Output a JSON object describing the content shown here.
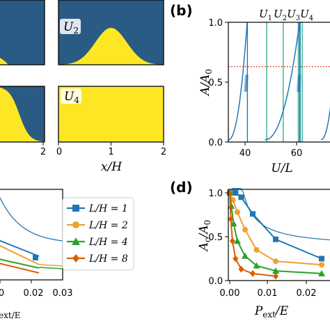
{
  "colors": {
    "navy": "#2a5b84",
    "yellow": "#fde725",
    "blue": "#1f77b4",
    "teal_light": "#3cb08a",
    "orange": "#f0a030",
    "green": "#2ca02c",
    "dark_orange": "#d95f02",
    "red_dotted": "#e41a1c",
    "sq_blue": "#1f77b4"
  },
  "panels": {
    "a": {
      "insets": [
        {
          "label": "U",
          "sub": "2"
        },
        {
          "label": "U",
          "sub": "4"
        }
      ],
      "x_ticks": [
        "0",
        "1",
        "2"
      ],
      "x_tick_left": "2",
      "xlabel": "x/H"
    },
    "b": {
      "letter": "(b)",
      "top_labels": [
        "U",
        "1",
        "U",
        "2",
        "U",
        "3",
        "U",
        "4"
      ],
      "ylabel": "A/A",
      "ylabel_sub": "0",
      "xlabel": "U/L",
      "y_ticks": [
        "0.0",
        "0.5",
        "1.0"
      ],
      "x_ticks": [
        "40",
        "60"
      ]
    },
    "c": {
      "x_ticks": [
        "0.01",
        "0.02",
        "0.03"
      ],
      "x_tick_left": "0",
      "xlabel_suffix": "ext/E",
      "legend": [
        {
          "text": "L/H = 1",
          "marker": "square"
        },
        {
          "text": "L/H = 2",
          "marker": "circle"
        },
        {
          "text": "L/H = 4",
          "marker": "triangle"
        },
        {
          "text": "L/H = 8",
          "marker": "diamond"
        }
      ]
    },
    "d": {
      "letter": "(d)",
      "ylabel": "A",
      "ylabel_sub1": "c",
      "ylabel_mid": "/A",
      "ylabel_sub2": "0",
      "xlabel": "P",
      "xlabel_sub": "ext",
      "xlabel_suffix": "/E",
      "y_ticks": [
        "0.0",
        "0.5",
        "1.0"
      ],
      "x_ticks": [
        "0.00",
        "0.01",
        "0.02"
      ]
    }
  },
  "chart_data": [
    {
      "type": "line",
      "panel": "b",
      "xlabel": "U/L",
      "ylabel": "A/A0",
      "xlim": [
        35,
        75
      ],
      "ylim": [
        0,
        1
      ],
      "vertical_lines": [
        {
          "name": "U1",
          "x": 49.7
        },
        {
          "name": "U2",
          "x": 56.0
        },
        {
          "name": "U3",
          "x": 61.8
        },
        {
          "name": "U4",
          "x": 63.3
        }
      ],
      "hline": {
        "y": 0.63,
        "style": "dotted"
      }
    },
    {
      "type": "line",
      "panel": "d",
      "xlabel": "Pext/E",
      "ylabel": "Ac/A0",
      "xlim": [
        0,
        0.03
      ],
      "ylim": [
        0,
        1.05
      ],
      "series": [
        {
          "name": "L/H = 1",
          "marker": "square",
          "x": [
            0.0,
            0.0015,
            0.003,
            0.006,
            0.012,
            0.024
          ],
          "y": [
            1.0,
            1.0,
            0.95,
            0.76,
            0.47,
            0.25
          ]
        },
        {
          "name": "L/H = 2",
          "marker": "circle",
          "x": [
            0.0,
            0.0008,
            0.002,
            0.004,
            0.007,
            0.012,
            0.024
          ],
          "y": [
            1.0,
            0.92,
            0.78,
            0.58,
            0.35,
            0.22,
            0.18
          ]
        },
        {
          "name": "L/H = 4",
          "marker": "triangle",
          "x": [
            0.0,
            0.0004,
            0.001,
            0.002,
            0.004,
            0.007,
            0.012,
            0.024
          ],
          "y": [
            1.0,
            0.85,
            0.65,
            0.45,
            0.28,
            0.17,
            0.11,
            0.08
          ]
        },
        {
          "name": "L/H = 8",
          "marker": "diamond",
          "x": [
            0.0,
            0.0003,
            0.0007,
            0.0015,
            0.003,
            0.006,
            0.012
          ],
          "y": [
            1.0,
            0.7,
            0.45,
            0.25,
            0.13,
            0.08,
            0.05
          ]
        }
      ]
    }
  ]
}
